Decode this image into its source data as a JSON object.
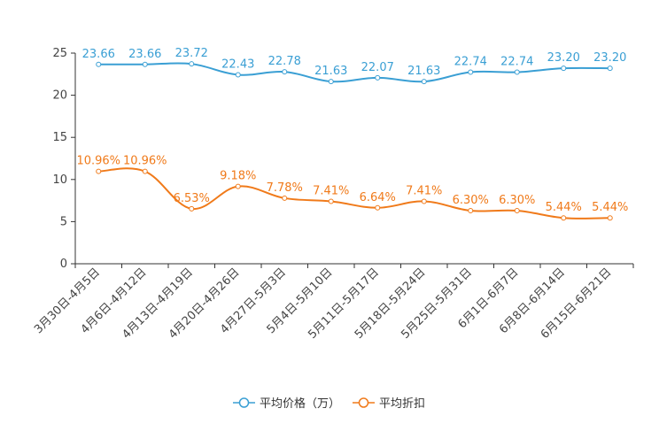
{
  "chart_data": {
    "type": "line",
    "title": "",
    "xlabel": "",
    "ylabel": "",
    "ylim": [
      0,
      25
    ],
    "yticks": [
      0,
      5,
      10,
      15,
      20,
      25
    ],
    "categories": [
      "3月30日-4月5日",
      "4月6日-4月12日",
      "4月13日-4月19日",
      "4月20日-4月26日",
      "4月27日-5月3日",
      "5月4日-5月10日",
      "5月11日-5月17日",
      "5月18日-5月24日",
      "5月25日-5月31日",
      "6月1日-6月7日",
      "6月8日-6月14日",
      "6月15日-6月21日"
    ],
    "series": [
      {
        "name": "平均价格（万）",
        "color": "#3a9fd4",
        "values": [
          23.66,
          23.66,
          23.72,
          22.43,
          22.78,
          21.63,
          22.07,
          21.63,
          22.74,
          22.74,
          23.2,
          23.2
        ],
        "labels": [
          "23.66",
          "23.66",
          "23.72",
          "22.43",
          "22.78",
          "21.63",
          "22.07",
          "21.63",
          "22.74",
          "22.74",
          "23.20",
          "23.20"
        ]
      },
      {
        "name": "平均折扣",
        "color": "#f07a1a",
        "values": [
          10.96,
          10.96,
          6.53,
          9.18,
          7.78,
          7.41,
          6.64,
          7.41,
          6.3,
          6.3,
          5.44,
          5.44
        ],
        "labels": [
          "10.96%",
          "10.96%",
          "6.53%",
          "9.18%",
          "7.78%",
          "7.41%",
          "6.64%",
          "7.41%",
          "6.30%",
          "6.30%",
          "5.44%",
          "5.44%"
        ]
      }
    ],
    "legend_position": "bottom"
  }
}
